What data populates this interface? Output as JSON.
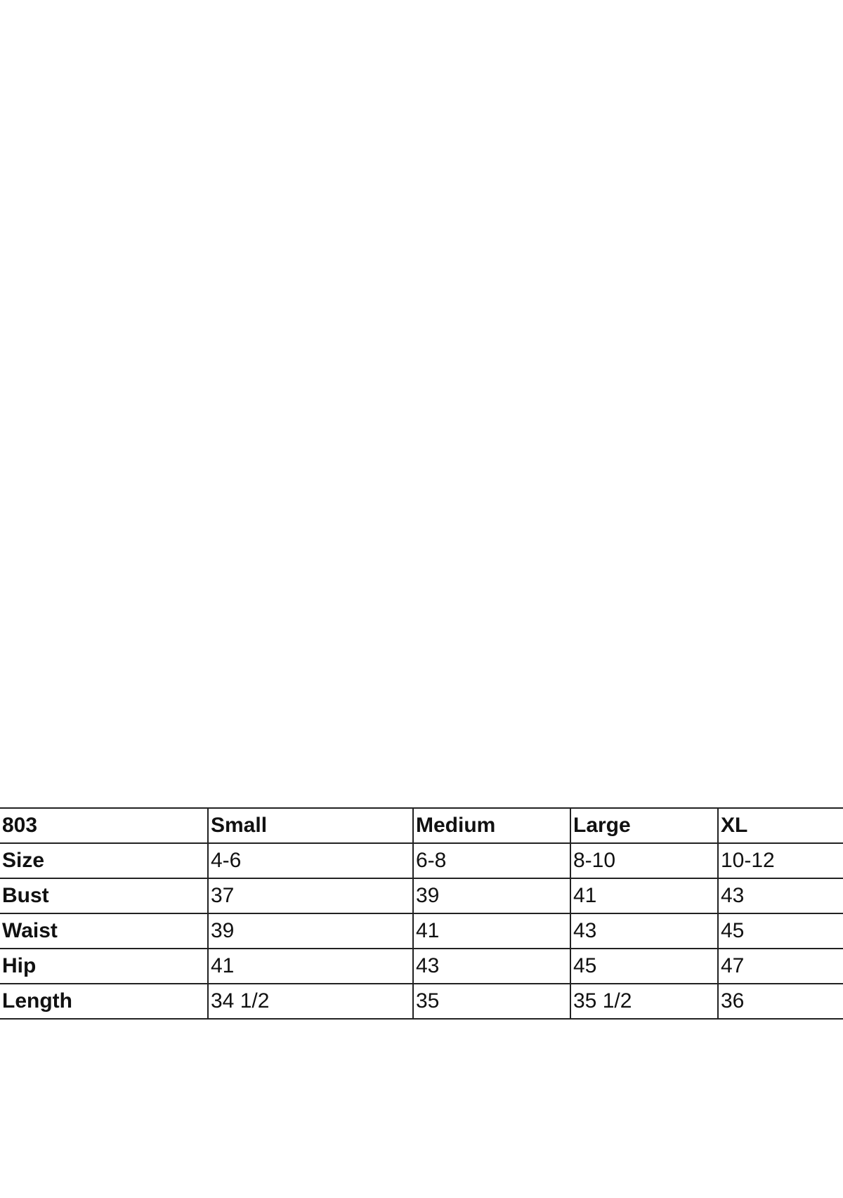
{
  "table": {
    "header": [
      "803",
      "Small",
      "Medium",
      "Large",
      "XL"
    ],
    "rows": [
      [
        "Size",
        "4-6",
        "6-8",
        "8-10",
        "10-12"
      ],
      [
        "Bust",
        37,
        39,
        41,
        43
      ],
      [
        "Waist",
        39,
        41,
        43,
        45
      ],
      [
        "Hip",
        41,
        43,
        45,
        47
      ],
      [
        "Length",
        "34 1/2",
        35,
        "35 1/2",
        36
      ]
    ]
  }
}
